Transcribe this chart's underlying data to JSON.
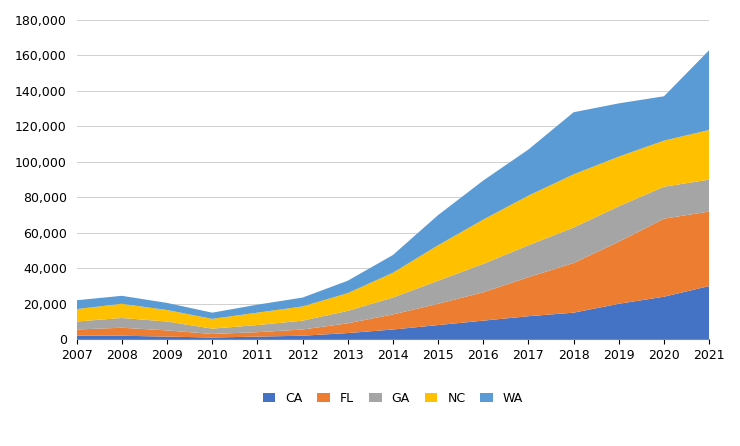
{
  "years": [
    2007,
    2008,
    2009,
    2010,
    2011,
    2012,
    2013,
    2014,
    2015,
    2016,
    2017,
    2018,
    2019,
    2020,
    2021
  ],
  "CA": [
    2000,
    2000,
    1500,
    1000,
    1500,
    2000,
    3500,
    5500,
    8000,
    10500,
    13000,
    15000,
    20000,
    24000,
    30000
  ],
  "FL": [
    3500,
    4500,
    3500,
    2000,
    2500,
    3500,
    5500,
    8500,
    12000,
    16000,
    22000,
    28000,
    35000,
    44000,
    42000
  ],
  "GA": [
    4500,
    5500,
    5000,
    3000,
    4000,
    5000,
    7000,
    9500,
    13000,
    16000,
    18000,
    20000,
    20000,
    18000,
    18000
  ],
  "NC": [
    7000,
    8000,
    6500,
    5500,
    7000,
    8000,
    10000,
    14000,
    20000,
    25000,
    28000,
    30000,
    28000,
    26000,
    28000
  ],
  "WA": [
    5000,
    4500,
    4000,
    3500,
    4500,
    5000,
    7000,
    10000,
    17000,
    22000,
    26000,
    35000,
    30000,
    25000,
    45000
  ],
  "colors": {
    "CA": "#4472C4",
    "FL": "#ED7D31",
    "GA": "#A5A5A5",
    "NC": "#FFC000",
    "WA": "#5B9BD5"
  },
  "ylim": [
    0,
    180000
  ],
  "yticks": [
    0,
    20000,
    40000,
    60000,
    80000,
    100000,
    120000,
    140000,
    160000,
    180000
  ],
  "background_color": "#ffffff"
}
